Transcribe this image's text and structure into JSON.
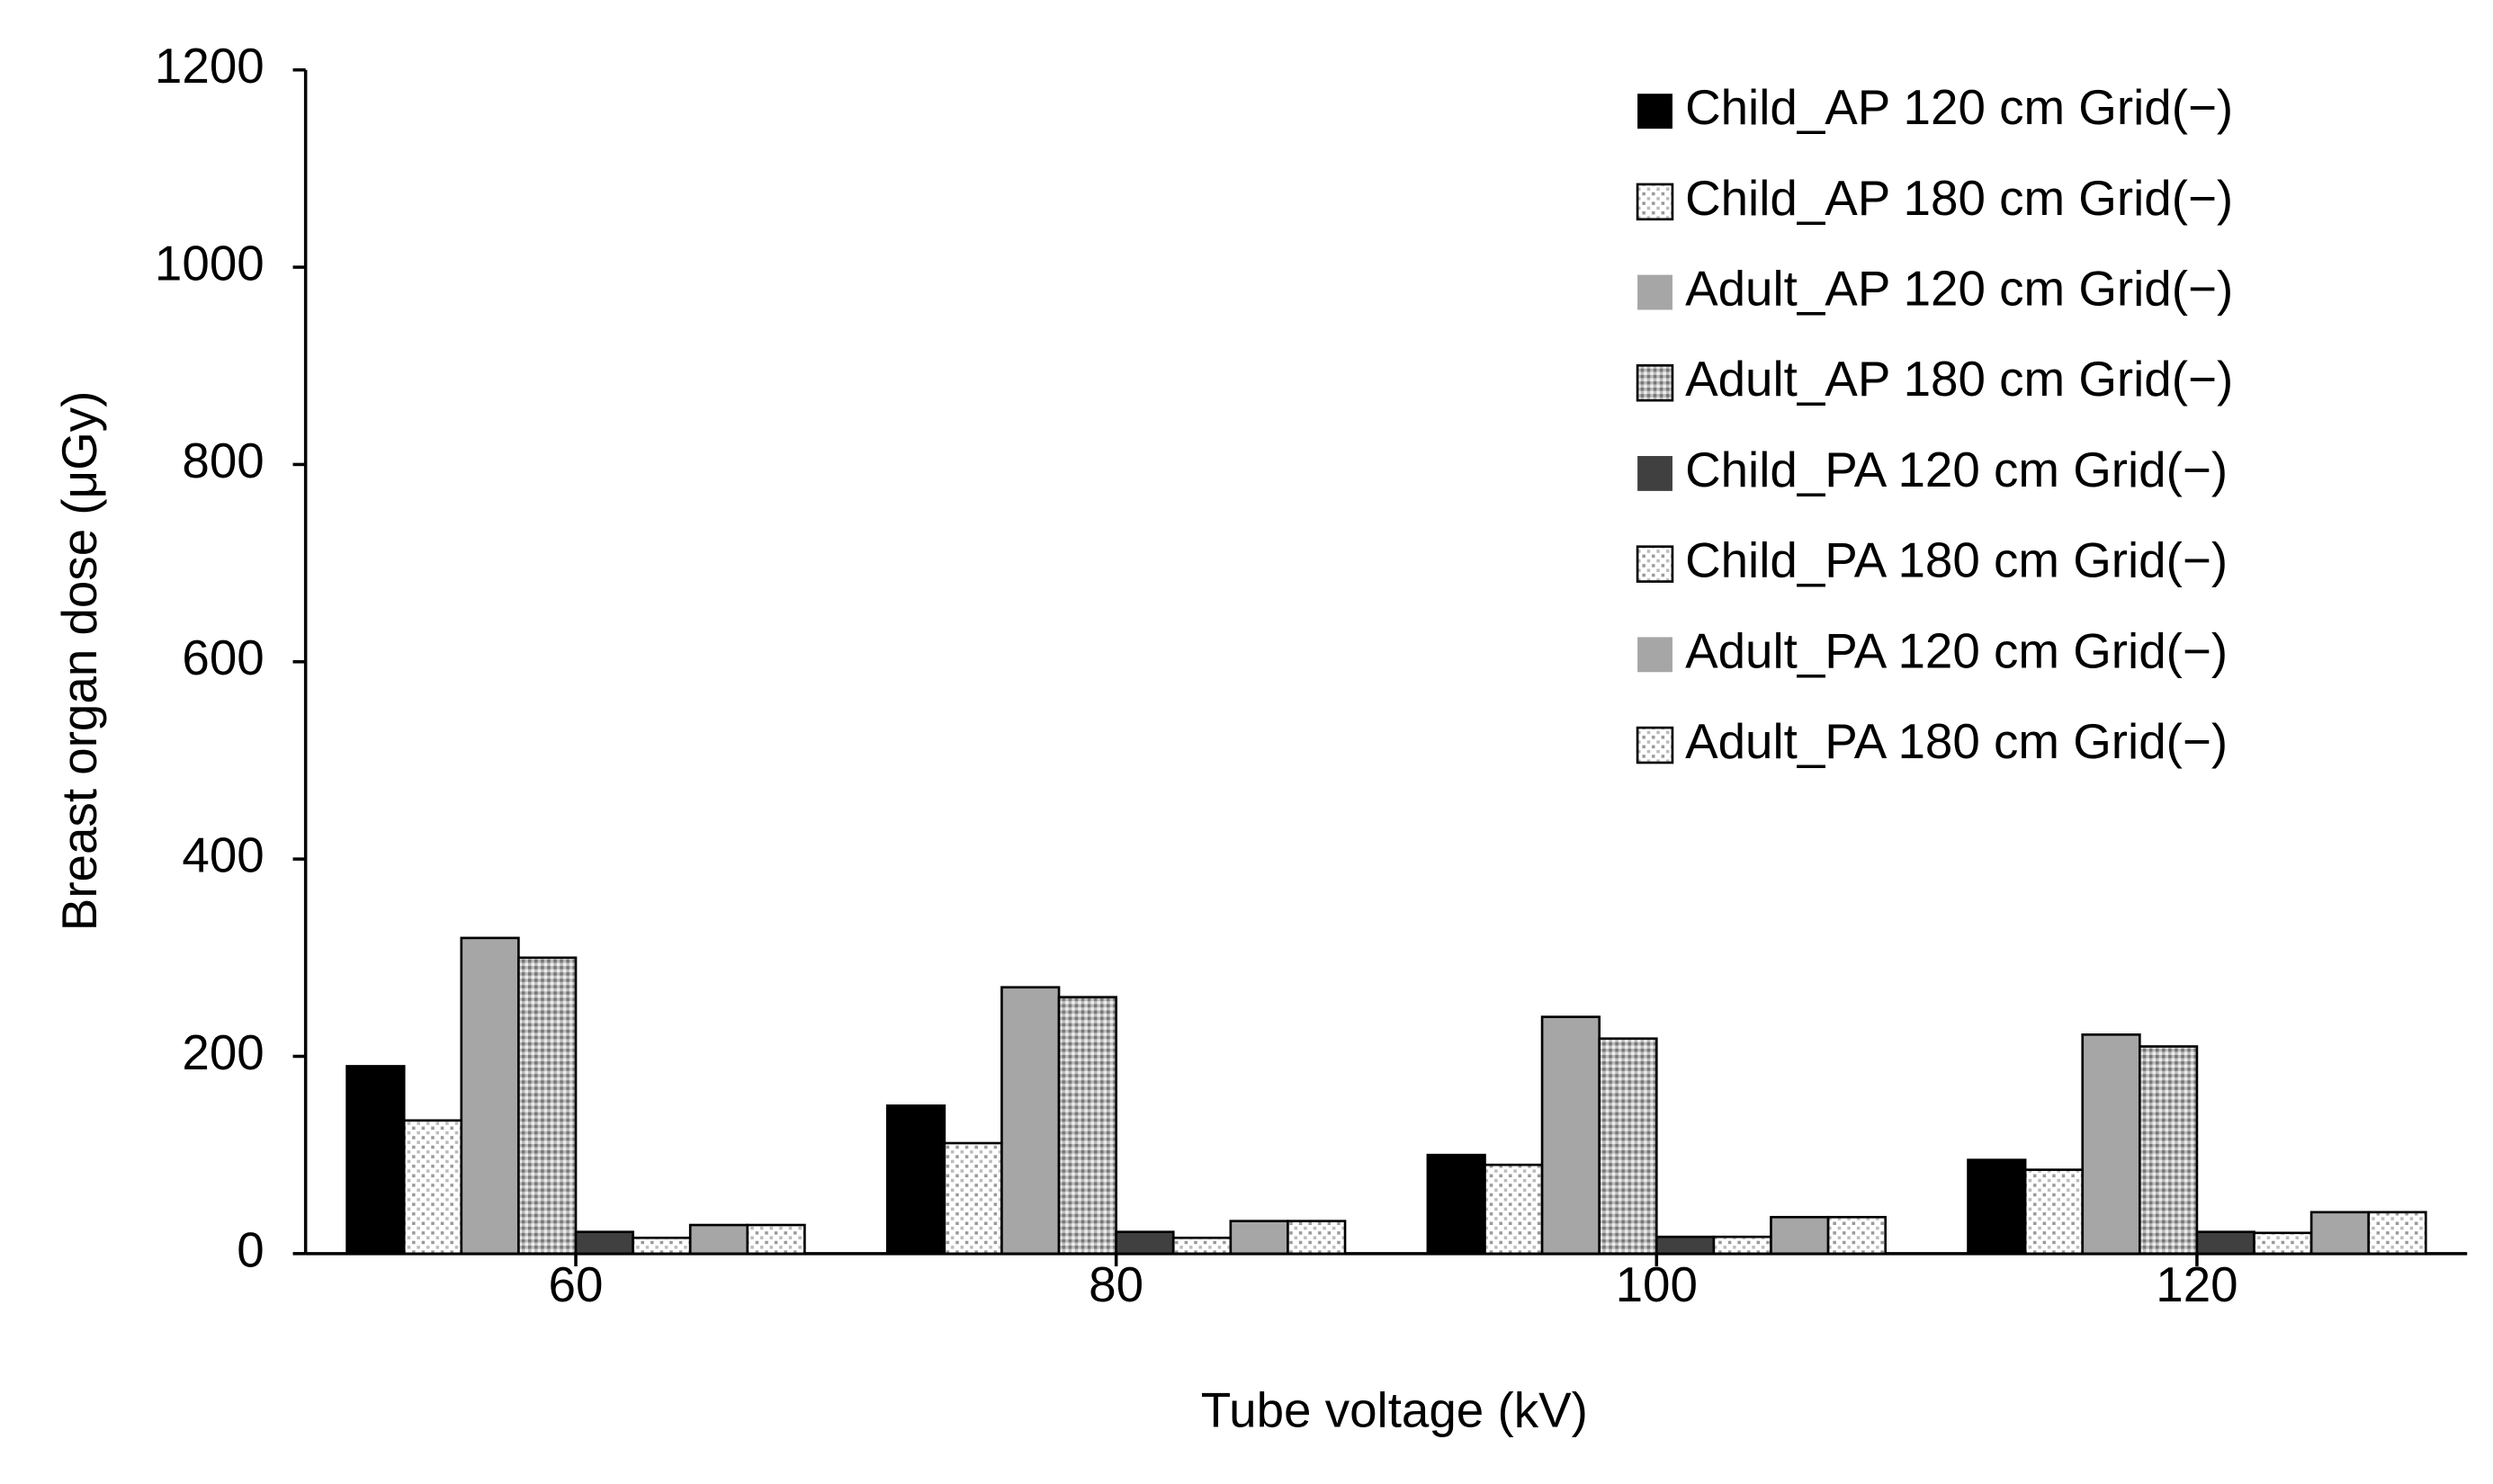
{
  "chart_data": {
    "type": "bar",
    "x_label": "Tube voltage (kV)",
    "y_label": "Breast organ dose (μGy)",
    "categories": [
      "60",
      "80",
      "100",
      "120"
    ],
    "ylim": [
      0,
      1200
    ],
    "yticks": [
      0,
      200,
      400,
      600,
      800,
      1000,
      1200
    ],
    "legend": "top-right",
    "series": [
      {
        "name": "Child_AP 120 cm Grid(−)",
        "color": "#000000",
        "fill_pattern": "solid",
        "values": [
          190,
          150,
          100,
          95
        ]
      },
      {
        "name": "Child_AP 180 cm Grid(−)",
        "color": "#ffffff",
        "fill_pattern": "dots",
        "values": [
          135,
          112,
          90,
          85
        ]
      },
      {
        "name": "Adult_AP 120 cm Grid(−)",
        "color": "#a6a6a6",
        "fill_pattern": "solid",
        "values": [
          320,
          270,
          240,
          222
        ]
      },
      {
        "name": "Adult_AP 180 cm Grid(−)",
        "color": "#bfbfbf",
        "fill_pattern": "dense-dots",
        "values": [
          300,
          260,
          218,
          210
        ]
      },
      {
        "name": "Child_PA 120 cm Grid(−)",
        "color": "#404040",
        "fill_pattern": "solid",
        "values": [
          22,
          22,
          17,
          22
        ]
      },
      {
        "name": "Child_PA 180 cm Grid(−)",
        "color": "#ffffff",
        "fill_pattern": "dots",
        "values": [
          16,
          16,
          17,
          21
        ]
      },
      {
        "name": "Adult_PA 120 cm Grid(−)",
        "color": "#a6a6a6",
        "fill_pattern": "solid",
        "values": [
          29,
          33,
          37,
          42
        ]
      },
      {
        "name": "Adult_PA 180 cm Grid(−)",
        "color": "#ffffff",
        "fill_pattern": "dots",
        "values": [
          29,
          33,
          37,
          42
        ]
      }
    ]
  }
}
